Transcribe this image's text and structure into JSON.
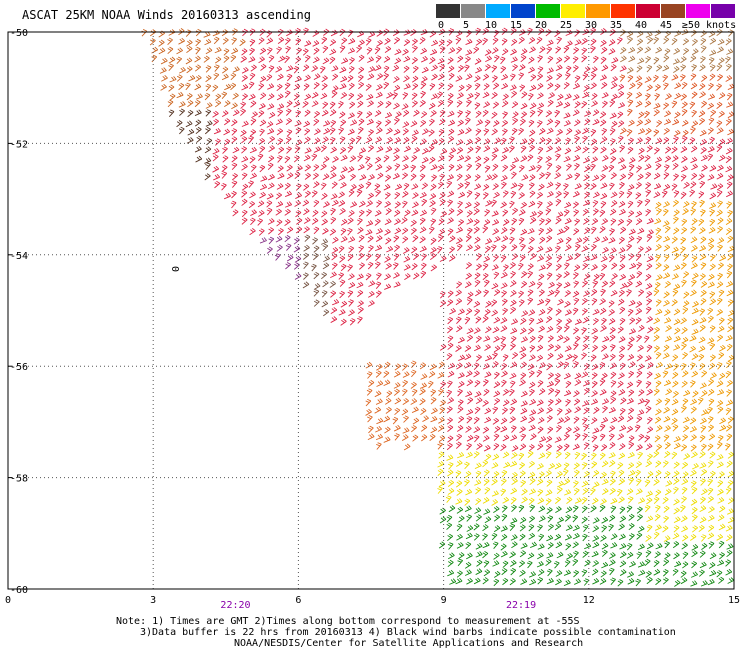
{
  "title": "ASCAT 25KM NOAA Winds 20160313 ascending",
  "legend": {
    "colors": [
      "#333333",
      "#888888",
      "#00aaff",
      "#0044cc",
      "#00bb00",
      "#ffee00",
      "#ff9900",
      "#ff3300",
      "#cc0033",
      "#994422",
      "#ee00ee",
      "#7700aa"
    ],
    "labels": [
      "0",
      "5",
      "10",
      "15",
      "20",
      "25",
      "30",
      "35",
      "40",
      "45",
      "≥50 knots"
    ]
  },
  "map": {
    "lat_ticks": [
      "-50",
      "-52",
      "-54",
      "-56",
      "-58",
      "-60"
    ],
    "lon_ticks": [
      "0",
      "3",
      "6",
      "9",
      "12",
      "15"
    ],
    "time_labels": [
      "22:20",
      "22:19"
    ],
    "contour_label": "0",
    "lat_range": [
      -60,
      -50
    ],
    "lon_range": [
      0,
      15
    ]
  },
  "notes": {
    "line1": "Note: 1) Times are GMT 2)Times along bottom correspond to measurement at -55S",
    "line2": "3)Data buffer is 22 hrs from 20160313 4) Black wind barbs indicate possible contamination",
    "line3": "NOAA/NESDIS/Center for Satellite Applications and Research"
  }
}
